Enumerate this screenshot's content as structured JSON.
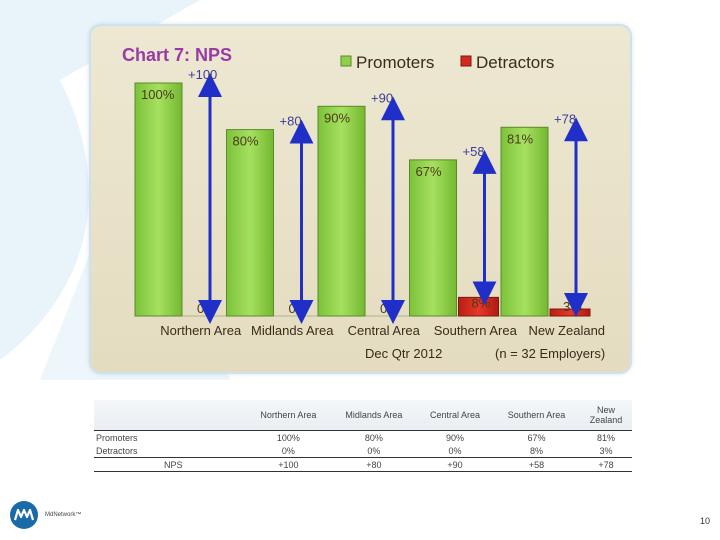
{
  "chart_data": {
    "type": "bar",
    "title": "Chart 7: NPS",
    "categories": [
      "Northern Area",
      "Midlands Area",
      "Central Area",
      "Southern Area",
      "New Zealand"
    ],
    "series": [
      {
        "name": "Promoters",
        "values": [
          100,
          80,
          90,
          67,
          81
        ],
        "labels": [
          "100%",
          "80%",
          "90%",
          "67%",
          "81%"
        ],
        "color": "#8ed048"
      },
      {
        "name": "Detractors",
        "values": [
          0,
          0,
          0,
          8,
          3
        ],
        "labels": [
          "0%",
          "0%",
          "0%",
          "8%",
          "3%"
        ],
        "color": "#d42a1e"
      }
    ],
    "nps": {
      "values": [
        100,
        80,
        90,
        58,
        78
      ],
      "labels": [
        "+100",
        "+80",
        "+90",
        "+58",
        "+78"
      ],
      "color": "#1f2fc8"
    },
    "ylim": [
      0,
      100
    ],
    "footnote_left": "Dec Qtr 2012",
    "footnote_right": "(n = 32 Employers)",
    "legend_position": "top"
  },
  "table": {
    "headers": [
      "Northern Area",
      "Midlands Area",
      "Central Area",
      "Southern Area",
      "New Zealand"
    ],
    "rows": [
      {
        "label": "Promoters",
        "cells": [
          "100%",
          "80%",
          "90%",
          "67%",
          "81%"
        ]
      },
      {
        "label": "Detractors",
        "cells": [
          "0%",
          "0%",
          "0%",
          "8%",
          "3%"
        ]
      },
      {
        "label": "NPS",
        "cells": [
          "+100",
          "+80",
          "+90",
          "+58",
          "+78"
        ]
      }
    ]
  },
  "logo": {
    "text": "MdNetwork™"
  },
  "page_number": "10",
  "colors": {
    "panel_bg": "#ebe5cc",
    "title": "#9b3aa5",
    "promoters": "#8ed048",
    "detractors": "#d42a1e",
    "nps_arrow": "#1f2fc8"
  }
}
